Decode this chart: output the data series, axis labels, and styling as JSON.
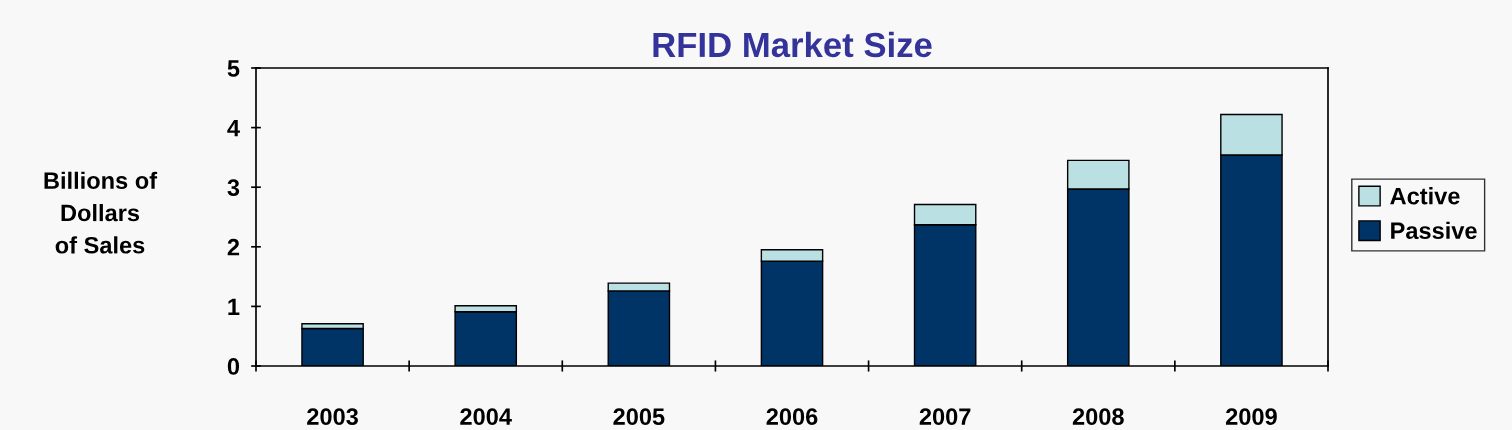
{
  "chart_data": {
    "type": "bar",
    "title": "RFID Market Size",
    "ylabel": "Billions of\nDollars\nof Sales",
    "categories": [
      "2003",
      "2004",
      "2005",
      "2006",
      "2007",
      "2008",
      "2009"
    ],
    "stacked": true,
    "series": [
      {
        "name": "Passive",
        "color": "#003366",
        "values": [
          0.63,
          0.91,
          1.26,
          1.76,
          2.37,
          2.97,
          3.54
        ]
      },
      {
        "name": "Active",
        "color": "#bbe0e3",
        "values": [
          0.08,
          0.1,
          0.13,
          0.19,
          0.34,
          0.48,
          0.68
        ]
      }
    ],
    "ylim": [
      0,
      5
    ],
    "yticks": [
      0,
      1,
      2,
      3,
      4,
      5
    ],
    "grid": false,
    "legend": "right"
  }
}
